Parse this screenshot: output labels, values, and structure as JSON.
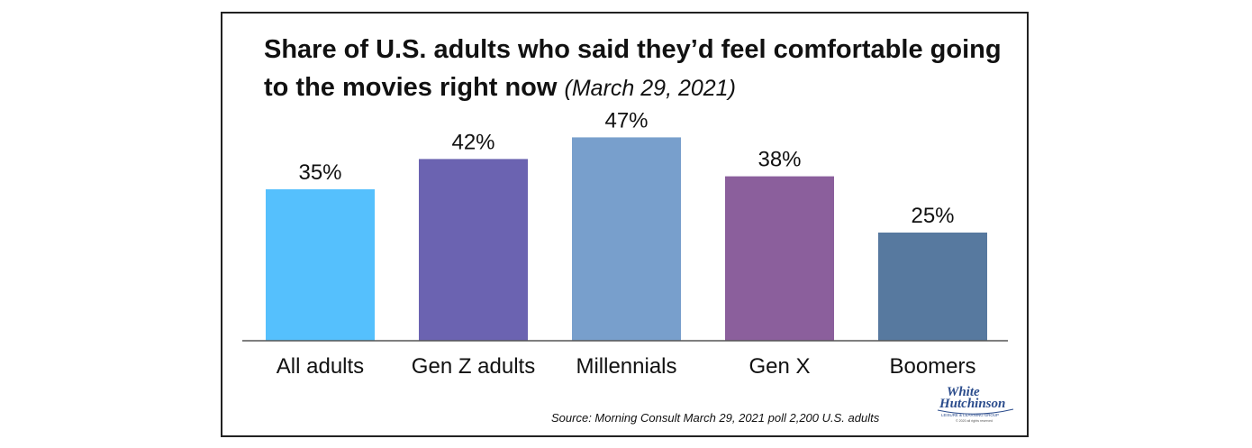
{
  "chart_data": {
    "type": "bar",
    "title": "Share of U.S. adults who said they’d feel comfortable going to the movies right now",
    "subtitle": "(March 29, 2021)",
    "categories": [
      "All adults",
      "Gen Z adults",
      "Millennials",
      "Gen X",
      "Boomers"
    ],
    "values": [
      35,
      42,
      47,
      38,
      25
    ],
    "value_labels": [
      "35%",
      "42%",
      "47%",
      "38%",
      "25%"
    ],
    "colors": [
      "#55c0fd",
      "#6b63b1",
      "#789fcc",
      "#8b5f9c",
      "#57799f"
    ],
    "ylim": [
      0,
      55
    ],
    "grid": false,
    "legend": "none"
  },
  "source": "Source: Morning Consult March 29, 2021 poll 2,200 U.S. adults",
  "logo": {
    "line1": "White",
    "line2": "Hutchinson",
    "tagline": "LEISURE & LEARNING GROUP",
    "rights": "© 2020 all rights reserved",
    "color": "#2b4c8c"
  }
}
